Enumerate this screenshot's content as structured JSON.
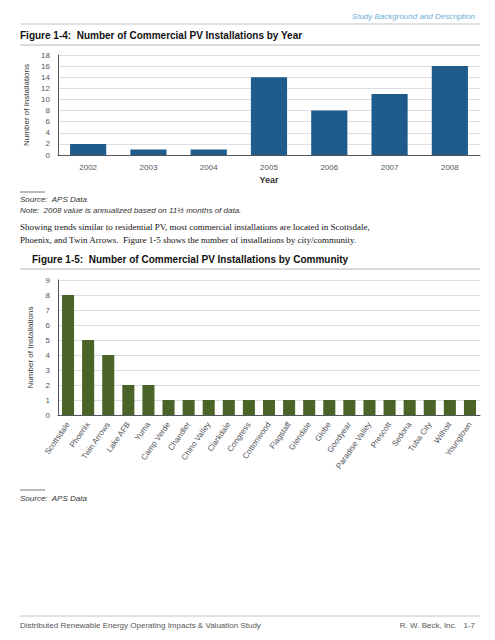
{
  "chart_data": [
    {
      "type": "bar",
      "title": "Figure 1-4:  Number of Commercial PV Installations by Year",
      "categories": [
        "2002",
        "2003",
        "2004",
        "2005",
        "2006",
        "2007",
        "2008"
      ],
      "values": [
        2,
        1,
        1,
        14,
        8,
        11,
        16
      ],
      "color": "#1f5c8b",
      "xlabel": "Year",
      "ylabel": "Number of Installations",
      "ylim": [
        0,
        18
      ],
      "yticks": [
        0,
        2,
        4,
        6,
        8,
        10,
        12,
        14,
        16,
        18
      ],
      "grid": true,
      "annotations": [
        "Study Background and Description",
        "Source:  APS Data",
        "Note:  2008 value is annualized based on 11½ months of data.",
        "Showing trends similar to residential PV, most commercial installations are located in Scottsdale,",
        "Phoenix, and Twin Arrows.  Figure 1-5 shows the number of installations by city/community."
      ]
    },
    {
      "type": "bar",
      "title": "Figure 1-5:  Number of Commercial PV Installations by Community",
      "categories": [
        "Scottsdale",
        "Phoenix",
        "Twin Arrows",
        "Lake AFB",
        "Yuma",
        "Camp Verde",
        "Chandler",
        "Chino Valley",
        "Clarkdale",
        "Congress",
        "Cottonwood",
        "Flagstaff",
        "Glendale",
        "Globe",
        "Goodyear",
        "Paradise Valley",
        "Prescott",
        "Sedona",
        "Tuba City",
        "Wilhoit",
        "Youngtown"
      ],
      "values": [
        8,
        5,
        4,
        2,
        2,
        1,
        1,
        1,
        1,
        1,
        1,
        1,
        1,
        1,
        1,
        1,
        1,
        1,
        1,
        1,
        1
      ],
      "color": "#4a6428",
      "ylabel": "Number of Installations",
      "ylim": [
        0,
        9
      ],
      "yticks": [
        0,
        1,
        2,
        3,
        4,
        5,
        6,
        7,
        8,
        9
      ],
      "grid": true,
      "annotations": [
        "Source:  APS Data",
        "Distributed Renewable Energy Operating Impacts & Valuation Study",
        "R. W. Beck, Inc.   1-7"
      ]
    }
  ]
}
